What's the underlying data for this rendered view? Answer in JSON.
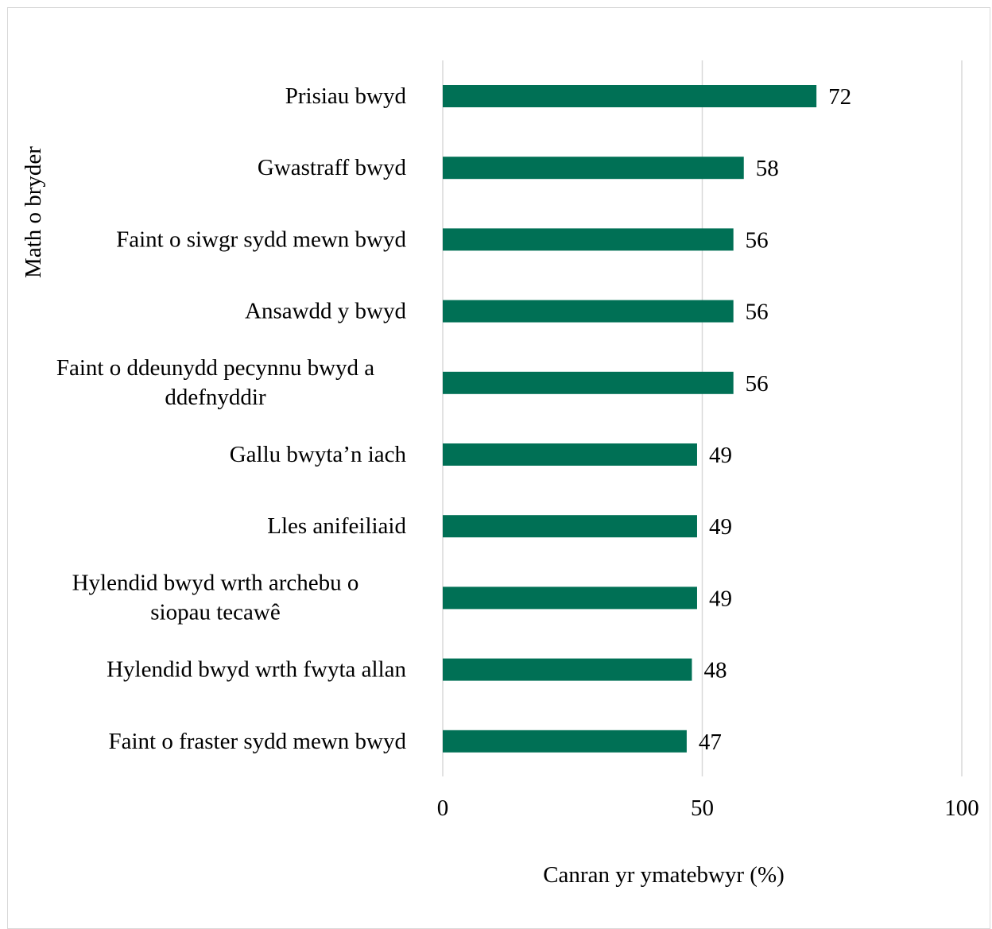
{
  "chart_data": {
    "type": "bar",
    "orientation": "horizontal",
    "categories": [
      [
        "Prisiau bwyd"
      ],
      [
        "Gwastraff bwyd"
      ],
      [
        "Faint o siwgr sydd mewn bwyd"
      ],
      [
        "Ansawdd y bwyd"
      ],
      [
        "Faint o ddeunydd pecynnu bwyd a",
        "ddefnyddir"
      ],
      [
        "Gallu bwyta’n iach"
      ],
      [
        "Lles anifeiliaid"
      ],
      [
        "Hylendid bwyd wrth archebu o",
        "siopau tecawê"
      ],
      [
        "Hylendid bwyd wrth fwyta allan"
      ],
      [
        "Faint o fraster sydd mewn bwyd"
      ]
    ],
    "values": [
      72,
      58,
      56,
      56,
      56,
      49,
      49,
      49,
      48,
      47
    ],
    "data_labels": [
      "72",
      "58",
      "56",
      "56",
      "56",
      "49",
      "49",
      "49",
      "48",
      "47"
    ],
    "xlabel": "Canran yr ymatebwyr (%)",
    "ylabel": "Math o bryder",
    "xlim": [
      0,
      100
    ],
    "xticks": [
      "0",
      "50",
      "100"
    ],
    "grid": "vertical",
    "bar_color": "#007055",
    "grid_color": "#d9d9d9"
  }
}
